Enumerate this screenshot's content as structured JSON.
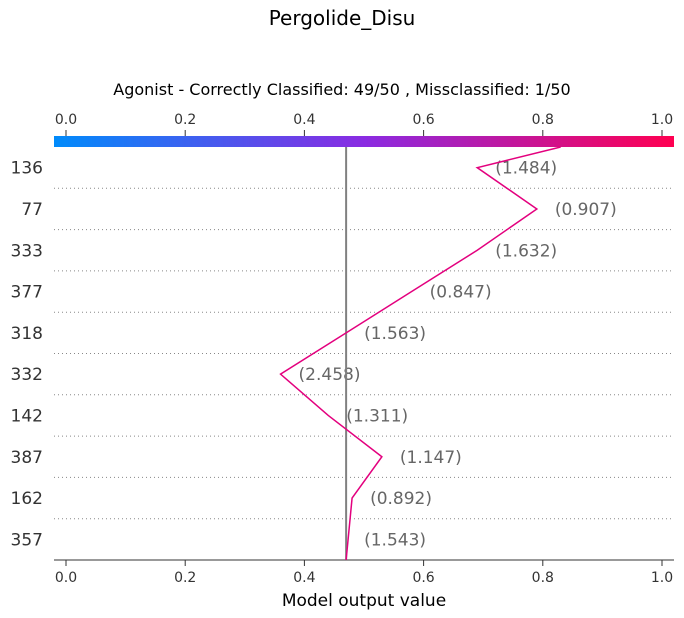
{
  "chart_data": {
    "type": "line",
    "title": "Pergolide_Disu",
    "subtitle": "Agonist - Correctly Classified: 49/50 , Missclassified: 1/50",
    "xlabel": "Model output value",
    "xlim": [
      0.0,
      1.0
    ],
    "xticks": [
      "0.0",
      "0.2",
      "0.4",
      "0.6",
      "0.8",
      "1.0"
    ],
    "base_value": 0.47,
    "colorbar": {
      "from": "#008bfb",
      "mid": "#8a2be2",
      "to": "#ff0051"
    },
    "line_color": "#e3007e",
    "rows": [
      {
        "feature": "136",
        "value_label": "(1.484)",
        "x": 0.69
      },
      {
        "feature": "77",
        "value_label": "(0.907)",
        "x": 0.79
      },
      {
        "feature": "333",
        "value_label": "(1.632)",
        "x": 0.69
      },
      {
        "feature": "377",
        "value_label": "(0.847)",
        "x": 0.58
      },
      {
        "feature": "318",
        "value_label": "(1.563)",
        "x": 0.47
      },
      {
        "feature": "332",
        "value_label": "(2.458)",
        "x": 0.36
      },
      {
        "feature": "142",
        "value_label": "(1.311)",
        "x": 0.44
      },
      {
        "feature": "387",
        "value_label": "(1.147)",
        "x": 0.53
      },
      {
        "feature": "162",
        "value_label": "(0.892)",
        "x": 0.48
      },
      {
        "feature": "357",
        "value_label": "(1.543)",
        "x": 0.47
      }
    ],
    "path_points": [
      0.83,
      0.69,
      0.79,
      0.69,
      0.58,
      0.47,
      0.36,
      0.44,
      0.53,
      0.48,
      0.47
    ],
    "grid": "dotted-horizontal",
    "legend": "none"
  }
}
